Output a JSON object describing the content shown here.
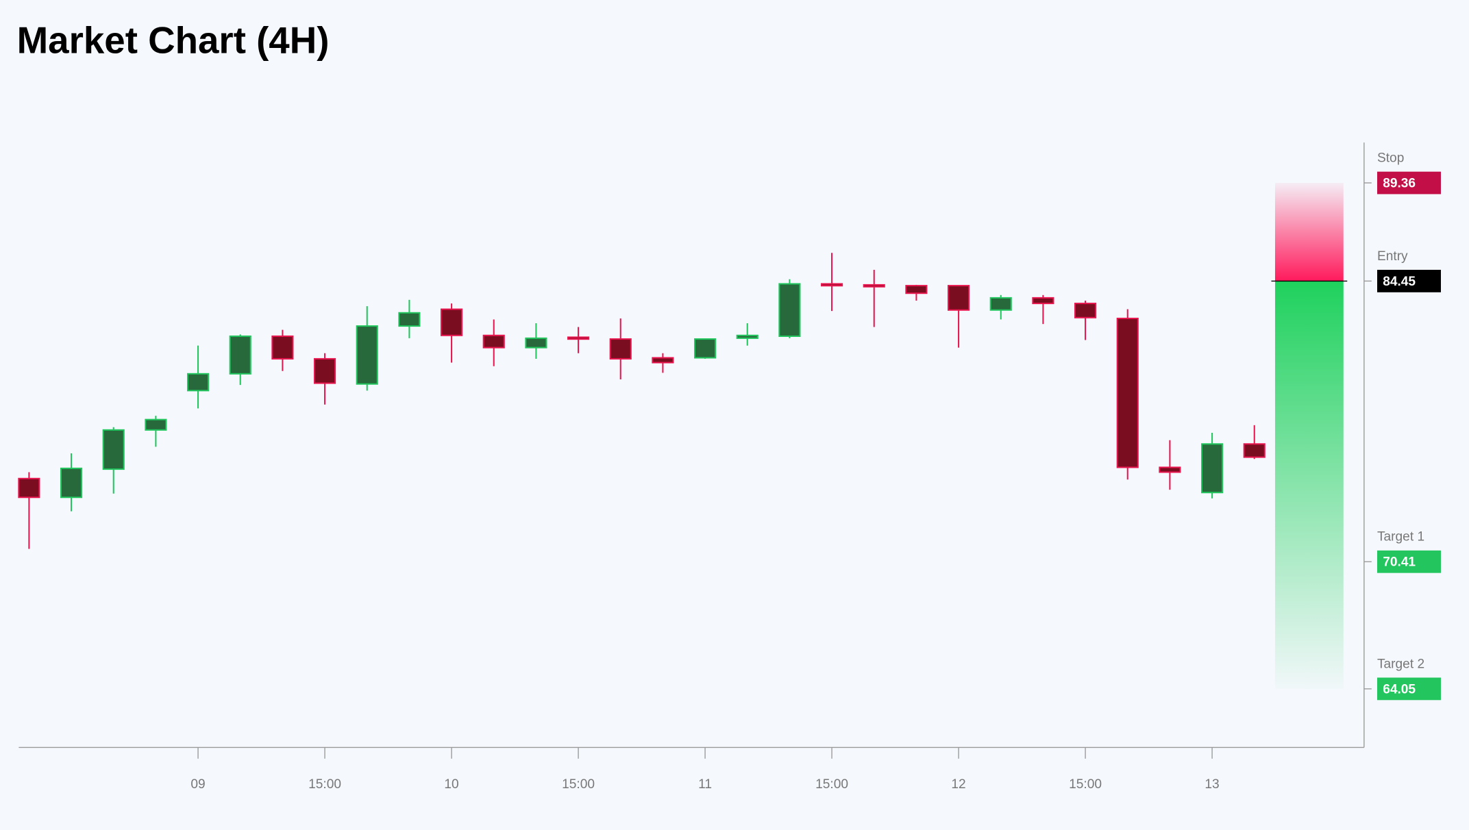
{
  "chart_data": {
    "type": "candlestick",
    "title": "Market Chart (4H)",
    "categories": [
      null,
      null,
      null,
      null,
      "09",
      null,
      null,
      "15:00",
      null,
      null,
      "10",
      null,
      null,
      "15:00",
      null,
      null,
      "11",
      null,
      null,
      "15:00",
      null,
      null,
      "12",
      null,
      null,
      "15:00",
      null,
      null,
      "13",
      null
    ],
    "open": [
      74.57,
      73.63,
      75.04,
      77.0,
      78.97,
      79.81,
      81.69,
      80.56,
      79.3,
      82.2,
      83.04,
      81.73,
      81.12,
      81.64,
      81.55,
      80.61,
      80.61,
      81.59,
      81.69,
      84.31,
      84.26,
      84.22,
      84.22,
      83.0,
      83.61,
      83.33,
      82.58,
      75.13,
      73.87,
      76.3
    ],
    "high": [
      74.89,
      75.83,
      77.14,
      77.71,
      81.22,
      81.78,
      82.01,
      80.84,
      83.19,
      83.51,
      83.33,
      82.53,
      82.34,
      82.15,
      82.58,
      80.84,
      81.55,
      82.34,
      84.54,
      85.86,
      85.01,
      84.26,
      84.22,
      83.75,
      83.75,
      83.47,
      83.04,
      76.49,
      76.86,
      77.24
    ],
    "low": [
      71.05,
      72.93,
      73.82,
      76.16,
      78.08,
      79.25,
      79.95,
      78.27,
      78.97,
      81.59,
      80.37,
      80.19,
      80.56,
      80.84,
      79.53,
      79.86,
      80.56,
      81.22,
      81.59,
      82.95,
      82.15,
      83.47,
      81.12,
      82.53,
      82.3,
      81.5,
      74.52,
      74.01,
      73.58,
      75.55
    ],
    "close": [
      73.63,
      75.08,
      77.0,
      77.52,
      79.81,
      81.69,
      80.56,
      79.34,
      82.2,
      82.86,
      81.73,
      81.12,
      81.59,
      81.55,
      80.56,
      80.37,
      81.55,
      81.73,
      84.31,
      84.22,
      84.17,
      83.84,
      83.0,
      83.61,
      83.33,
      82.62,
      75.13,
      74.89,
      76.3,
      75.64
    ],
    "up_color": "#27693b",
    "up_wick": "#22c55e",
    "down_color": "#7a0d20",
    "down_wick": "#e8164f",
    "ylim": [
      61.12,
      91.38
    ],
    "levels": [
      {
        "name": "Stop",
        "value": 89.36,
        "color": "#c20f48"
      },
      {
        "name": "Entry",
        "value": 84.45,
        "color": "#000000"
      },
      {
        "name": "Target 1",
        "value": 70.41,
        "color": "#22c55e"
      },
      {
        "name": "Target 2",
        "value": 64.05,
        "color": "#22c55e"
      }
    ]
  }
}
